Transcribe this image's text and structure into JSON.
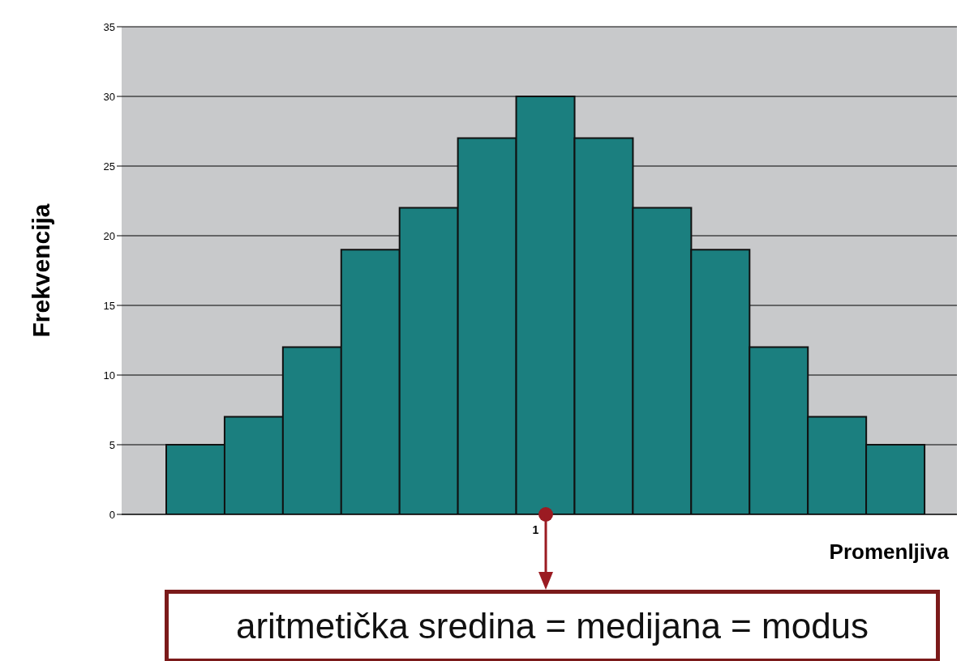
{
  "chart_data": {
    "type": "bar",
    "ylabel": "Frekvencija",
    "xlabel": "Promenljiva",
    "categories": [
      null,
      null,
      null,
      null,
      null,
      null,
      "1",
      null,
      null,
      null,
      null,
      null,
      null
    ],
    "values": [
      5,
      7,
      12,
      19,
      22,
      27,
      30,
      27,
      22,
      19,
      12,
      7,
      5
    ],
    "color": "#1b7f7f",
    "ylim": [
      0,
      35
    ],
    "yticks": [
      0,
      5,
      10,
      15,
      20,
      25,
      30,
      35
    ],
    "grid": "y",
    "annotations": [
      {
        "text": "aritmetička sredina = medijana = modus",
        "x": "1",
        "y": 0
      }
    ]
  }
}
